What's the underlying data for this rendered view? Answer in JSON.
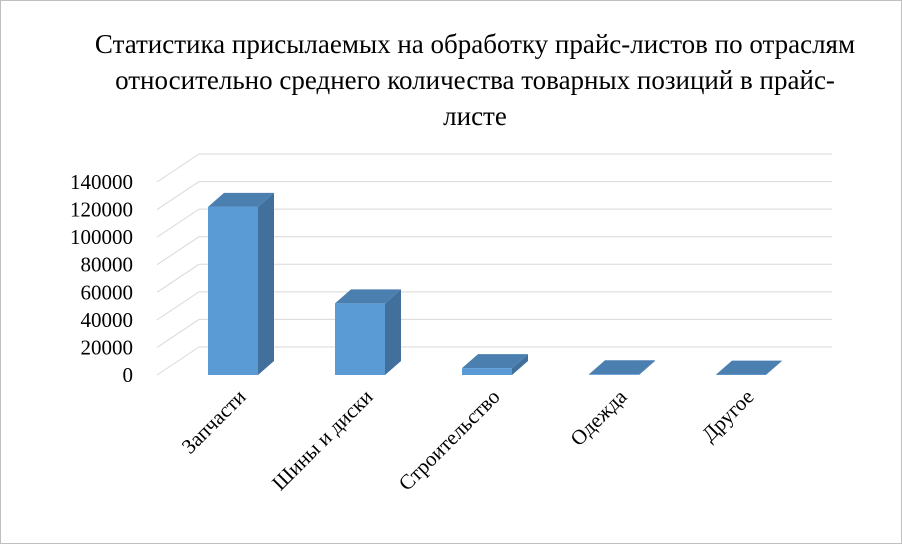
{
  "chart_data": {
    "type": "bar",
    "title": "Статистика присылаемых на обработку прайс-листов по отраслям относительно среднего количества товарных позиций в прайс-листе",
    "categories": [
      "Запчасти",
      "Шины и диски",
      "Строительство",
      "Одежда",
      "Другое"
    ],
    "values": [
      122000,
      52000,
      5000,
      500,
      300
    ],
    "ylim": [
      0,
      140000
    ],
    "yticks": [
      "0",
      "20000",
      "40000",
      "60000",
      "80000",
      "100000",
      "120000",
      "140000"
    ],
    "xlabel": "",
    "ylabel": "",
    "grid": true,
    "legend": "none",
    "colors": {
      "front": "#5b9bd5",
      "side": "#41709c",
      "top": "#4a7fb0",
      "grid": "#d9d9d9"
    }
  }
}
